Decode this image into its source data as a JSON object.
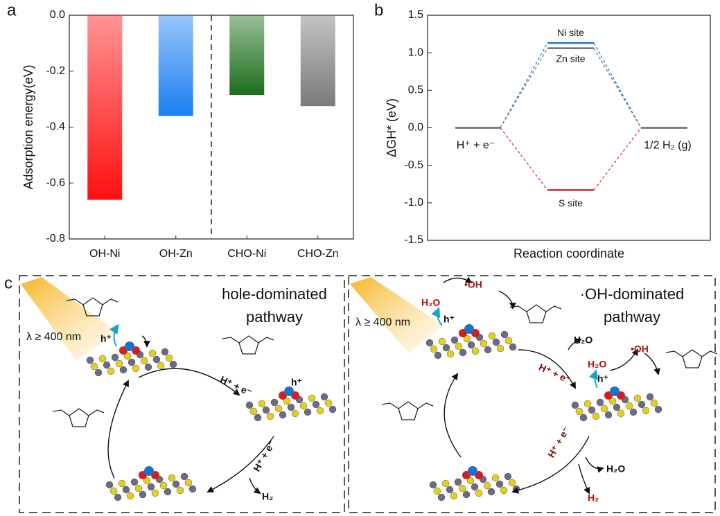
{
  "chart_data": [
    {
      "type": "bar",
      "panel": "a",
      "categories": [
        "OH-Ni",
        "OH-Zn",
        "CHO-Ni",
        "CHO-Zn"
      ],
      "values": [
        -0.66,
        -0.36,
        -0.285,
        -0.325
      ],
      "colors": [
        "#ff1010",
        "#1a7ff2",
        "#1c6e1c",
        "#7a7a7a"
      ],
      "ylabel": "Adsorption energy(eV)",
      "ylim": [
        -0.8,
        0.0
      ],
      "yticks": [
        {
          "value": 0,
          "label": "0.0"
        },
        -0.2,
        -0.4,
        -0.6,
        -0.8
      ]
    },
    {
      "type": "line",
      "panel": "b",
      "categories": [
        "H⁺ + e⁻",
        null,
        "1/2 H₂ (g)"
      ],
      "series": [
        {
          "name": "Ni site",
          "color": "#1f78d0",
          "values": [
            0,
            1.13,
            0
          ]
        },
        {
          "name": "Zn site",
          "color": "#6e6e6e",
          "values": [
            0,
            1.06,
            0
          ]
        },
        {
          "name": "S site",
          "color": "#d42a2a",
          "values": [
            0,
            -0.83,
            0
          ]
        }
      ],
      "ylabel": "ΔGH* (eV)",
      "xlabel": "Reaction coordinate",
      "ylim": [
        -1.5,
        1.5
      ],
      "yticks": [
        -1.5,
        {
          "value": -1,
          "label": "-1.0"
        },
        -0.5,
        {
          "value": 0,
          "label": "0.0"
        },
        0.5,
        {
          "value": 1,
          "label": "1.0"
        },
        1.5
      ]
    }
  ],
  "diagram": {
    "panel": "c",
    "left_title": [
      "hole-dominated",
      "pathway"
    ],
    "right_title": [
      "·OH-dominated",
      "pathway"
    ],
    "light": [
      "λ ≥ 400 nm",
      "λ ≥ 400 nm"
    ],
    "labels": [
      "h⁺",
      "h⁺",
      "H⁺ + e⁻",
      "H⁺ + e⁻",
      "H₂",
      "h⁺",
      "h⁺",
      "H₂O",
      "•OH",
      "H₂O",
      "H⁺ + e⁻",
      "H₂O",
      "•OH",
      "H⁺ + e⁻",
      "H₂O",
      "H₂"
    ]
  }
}
